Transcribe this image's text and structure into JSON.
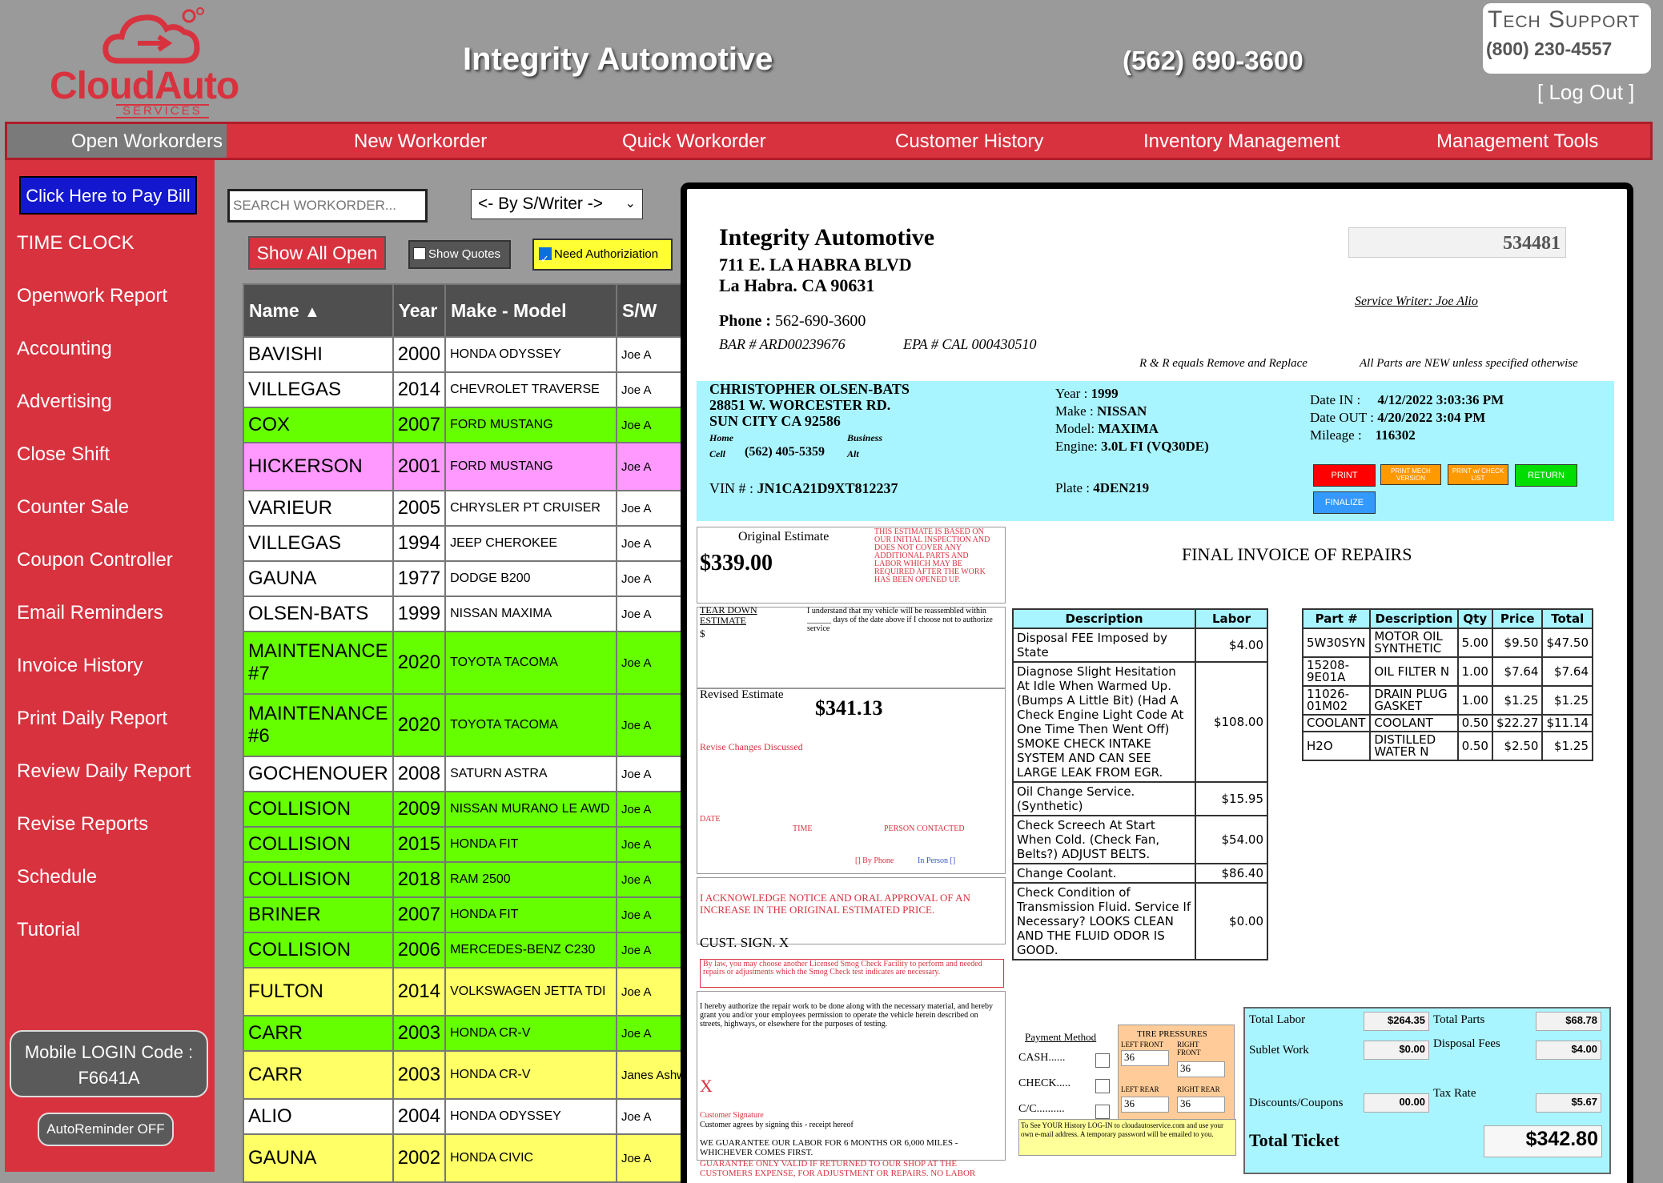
{
  "header": {
    "logo_text": "CloudAuto",
    "logo_sub": "SERVICES",
    "shop_name": "Integrity Automotive",
    "shop_phone": "(562) 690-3600",
    "tech_support_title": "Tech Support",
    "tech_support_phone": "(800) 230-4557",
    "logout": "[ Log Out ]"
  },
  "nav": [
    "Open Workorders",
    "New Workorder",
    "Quick Workorder",
    "Customer History",
    "Inventory Management",
    "Management Tools"
  ],
  "sidebar": {
    "pay_bill": "Click Here to Pay Bill",
    "items": [
      "TIME CLOCK",
      "Openwork Report",
      "Accounting",
      "Advertising",
      "Close Shift",
      "Counter Sale",
      "Coupon Controller",
      "Email Reminders",
      "Invoice History",
      "Print Daily Report",
      "Review Daily Report",
      "Revise Reports",
      "Schedule",
      "Tutorial"
    ],
    "mobile_login_label": "Mobile LOGIN Code :",
    "mobile_login_code": "F6641A",
    "autoreminder": "AutoReminder OFF"
  },
  "controls": {
    "search_placeholder": "SEARCH WORKORDER...",
    "writer_select": "<- By S/Writer ->",
    "show_all": "Show All Open",
    "show_quotes": "Show Quotes",
    "need_auth": "Need Authoriziation"
  },
  "table": {
    "headers": [
      "Name",
      "Year",
      "Make - Model",
      "S/W"
    ],
    "rows": [
      {
        "name": "BAVISHI",
        "year": "2000",
        "model": "HONDA ODYSSEY",
        "sw": "Joe A",
        "color": "white"
      },
      {
        "name": "VILLEGAS",
        "year": "2014",
        "model": "CHEVROLET TRAVERSE",
        "sw": "Joe A",
        "color": "white"
      },
      {
        "name": "COX",
        "year": "2007",
        "model": "FORD MUSTANG",
        "sw": "Joe A",
        "color": "green"
      },
      {
        "name": "HICKERSON",
        "year": "2001",
        "model": "FORD MUSTANG",
        "sw": "Joe A",
        "color": "pink"
      },
      {
        "name": "VARIEUR",
        "year": "2005",
        "model": "CHRYSLER PT CRUISER",
        "sw": "Joe A",
        "color": "white"
      },
      {
        "name": "VILLEGAS",
        "year": "1994",
        "model": "JEEP CHEROKEE",
        "sw": "Joe A",
        "color": "white"
      },
      {
        "name": "GAUNA",
        "year": "1977",
        "model": "DODGE B200",
        "sw": "Joe A",
        "color": "white"
      },
      {
        "name": "OLSEN-BATS",
        "year": "1999",
        "model": "NISSAN MAXIMA",
        "sw": "Joe A",
        "color": "white"
      },
      {
        "name": "MAINTENANCE #7",
        "year": "2020",
        "model": "TOYOTA TACOMA",
        "sw": "Joe A",
        "color": "green"
      },
      {
        "name": "MAINTENANCE #6",
        "year": "2020",
        "model": "TOYOTA TACOMA",
        "sw": "Joe A",
        "color": "green"
      },
      {
        "name": "GOCHENOUER",
        "year": "2008",
        "model": "SATURN ASTRA",
        "sw": "Joe A",
        "color": "white"
      },
      {
        "name": "COLLISION",
        "year": "2009",
        "model": "NISSAN MURANO LE AWD",
        "sw": "Joe A",
        "color": "green"
      },
      {
        "name": "COLLISION",
        "year": "2015",
        "model": "HONDA FIT",
        "sw": "Joe A",
        "color": "green"
      },
      {
        "name": "COLLISION",
        "year": "2018",
        "model": "RAM 2500",
        "sw": "Joe A",
        "color": "green"
      },
      {
        "name": "BRINER",
        "year": "2007",
        "model": "HONDA FIT",
        "sw": "Joe A",
        "color": "green"
      },
      {
        "name": "COLLISION",
        "year": "2006",
        "model": "MERCEDES-BENZ C230",
        "sw": "Joe A",
        "color": "green"
      },
      {
        "name": "FULTON",
        "year": "2014",
        "model": "VOLKSWAGEN JETTA TDI",
        "sw": "Joe A",
        "color": "yellow"
      },
      {
        "name": "CARR",
        "year": "2003",
        "model": "HONDA CR-V",
        "sw": "Joe A",
        "color": "green"
      },
      {
        "name": "CARR",
        "year": "2003",
        "model": "HONDA CR-V",
        "sw": "Janes Ashw",
        "color": "yellow"
      },
      {
        "name": "ALIO",
        "year": "2004",
        "model": "HONDA ODYSSEY",
        "sw": "Joe A",
        "color": "white"
      },
      {
        "name": "GAUNA",
        "year": "2002",
        "model": "HONDA CIVIC",
        "sw": "Joe A",
        "color": "yellow"
      }
    ]
  },
  "invoice": {
    "shop_name": "Integrity Automotive",
    "address1": "711 E. LA HABRA BLVD",
    "address2": "La Habra. CA 90631",
    "phone_label": "Phone :",
    "phone": "562-690-3600",
    "bar": "BAR # ARD00239676",
    "epa": "EPA # CAL 000430510",
    "number": "534481",
    "service_writer": "Service Writer: Joe Alio",
    "rr_note": "R & R equals Remove and Replace",
    "parts_note": "All Parts are NEW unless specified otherwise",
    "customer": {
      "name": "CHRISTOPHER OLSEN-BATS",
      "street": "28851 W. WORCESTER RD.",
      "city": "SUN CITY CA 92586",
      "home_label": "Home",
      "business_label": "Business",
      "cell_label": "Cell",
      "cell": "(562) 405-5359",
      "alt_label": "Alt",
      "vin_label": "VIN # :",
      "vin": "JN1CA21D9XT812237"
    },
    "vehicle": {
      "year_label": "Year :",
      "year": "1999",
      "make_label": "Make :",
      "make": "NISSAN",
      "model_label": "Model:",
      "model": "MAXIMA",
      "engine_label": "Engine:",
      "engine": "3.0L FI (VQ30DE)",
      "plate_label": "Plate :",
      "plate": "4DEN219"
    },
    "dates": {
      "in_label": "Date IN :",
      "in": "4/12/2022 3:03:36 PM",
      "out_label": "Date OUT :",
      "out": "4/20/2022 3:04 PM",
      "mileage_label": "Mileage :",
      "mileage": "116302"
    },
    "buttons": {
      "print": "PRINT",
      "print_mech": "PRINT MECH VERSION",
      "print_check": "PRINT w/ CHECK LIST",
      "return": "RETURN",
      "finalize": "FINALIZE"
    },
    "original_estimate_label": "Original Estimate",
    "original_estimate": "$339.00",
    "estimate_disclaimer": "THIS ESTIMATE IS BASED ON OUR INITIAL INSPECTION AND DOES NOT COVER ANY ADDITIONAL PARTS AND LABOR WHICH MAY BE REQUIRED AFTER THE WORK HAS BEEN OPENED UP.",
    "teardown_label": "TEAR DOWN ESTIMATE",
    "teardown_dollar": "$",
    "teardown_text": "I understand that my vehicle will be reassembled within ______ days of the date above if I choose not to authorize service",
    "revised_label": "Revised Estimate",
    "revised_estimate": "$341.13",
    "revise_changes": "Revise Changes Discussed",
    "date_label": "DATE",
    "time_label": "TIME",
    "person_label": "PERSON CONTACTED",
    "by_phone": "[] By Phone",
    "in_person": "In Person []",
    "acknowledge": "I ACKNOWLEDGE NOTICE AND ORAL APPROVAL OF AN INCREASE IN THE ORIGINAL ESTIMATED PRICE.",
    "cust_sign": "CUST. SIGN. X",
    "smog_note": "By law, you may choose another Licensed Smog Check Facility to perform and needed repairs or adjustments which the Smog Check test indicates are necessary.",
    "authorize_text": "I hereby authorize the repair work to be done along with the necessary material, and hereby grant you and/or your employees permission to operate the vehicle herein described on streets, highways, or elsewhere for the purposes of testing.",
    "sig_x": "X",
    "customer_signature": "Customer Signature",
    "customer_agrees": "Customer agrees by signing this - receipt hereof",
    "guarantee": "WE GUARANTEE OUR LABOR FOR 6 MONTHS OR 6,000 MILES - WHICHEVER COMES FIRST.",
    "guarantee_valid": "GUARANTEE ONLY VALID IF RETURNED TO OUR SHOP AT THE CUSTOMERS EXPENSE, FOR ADJUSTMENT OR REPAIRS. NO LABOR",
    "title": "FINAL INVOICE OF REPAIRS",
    "labor_headers": [
      "Description",
      "Labor"
    ],
    "labor": [
      {
        "desc": "Disposal FEE Imposed by State",
        "amount": "$4.00"
      },
      {
        "desc": "Diagnose Slight Hesitation At Idle When Warmed Up. (Bumps A Little Bit) (Had A Check Engine Light Code At One Time Then Went Off) SMOKE CHECK INTAKE SYSTEM AND CAN SEE LARGE LEAK FROM EGR.",
        "amount": "$108.00"
      },
      {
        "desc": "Oil Change Service. (Synthetic)",
        "amount": "$15.95"
      },
      {
        "desc": "Check Screech At Start When Cold. (Check Fan, Belts?) ADJUST BELTS.",
        "amount": "$54.00"
      },
      {
        "desc": "Change Coolant.",
        "amount": "$86.40"
      },
      {
        "desc": "Check Condition of Transmission Fluid. Service If Necessary? LOOKS CLEAN AND THE FLUID ODOR IS GOOD.",
        "amount": "$0.00"
      }
    ],
    "parts_headers": [
      "Part #",
      "Description",
      "Qty",
      "Price",
      "Total"
    ],
    "parts": [
      {
        "part": "5W30SYN",
        "desc": "MOTOR OIL SYNTHETIC",
        "qty": "5.00",
        "price": "$9.50",
        "total": "$47.50"
      },
      {
        "part": "15208-9E01A",
        "desc": "OIL FILTER N",
        "qty": "1.00",
        "price": "$7.64",
        "total": "$7.64"
      },
      {
        "part": "11026-01M02",
        "desc": "DRAIN PLUG GASKET",
        "qty": "1.00",
        "price": "$1.25",
        "total": "$1.25"
      },
      {
        "part": "COOLANT",
        "desc": "COOLANT",
        "qty": "0.50",
        "price": "$22.27",
        "total": "$11.14"
      },
      {
        "part": "H2O",
        "desc": "DISTILLED WATER N",
        "qty": "0.50",
        "price": "$2.50",
        "total": "$1.25"
      }
    ],
    "payment_method": "Payment Method",
    "cash": "CASH......",
    "check": "CHECK.....",
    "cc": "C/C..........",
    "tire_title": "TIRE PRESSURES",
    "left_front": "LEFT FRONT",
    "left_front_val": "36",
    "right_front": "RIGHT FRONT",
    "right_front_val": "36",
    "left_rear": "LEFT REAR",
    "left_rear_val": "36",
    "right_rear": "RIGHT REAR",
    "right_rear_val": "36",
    "history_note": "To See YOUR History LOG-IN to cloudautoservice.com and use your own e-mail address. A temporary password will be emailed to you.",
    "totals": {
      "total_labor_label": "Total Labor",
      "total_labor": "$264.35",
      "total_parts_label": "Total Parts",
      "total_parts": "$68.78",
      "sublet_label": "Sublet Work",
      "sublet": "$0.00",
      "disposal_label": "Disposal Fees",
      "disposal": "$4.00",
      "discount_label": "Discounts/Coupons",
      "discount": "00.00",
      "tax_label": "Tax Rate",
      "tax": "$5.67",
      "total_ticket_label": "Total Ticket",
      "total_ticket": "$342.80"
    }
  },
  "colors": {
    "brand_red": "#d8323f",
    "row_green": "#66ff00",
    "row_pink": "#ff99ff",
    "row_yellow": "#ffff66",
    "info_cyan": "#a9f5ff",
    "pay_blue": "#1318cf"
  }
}
